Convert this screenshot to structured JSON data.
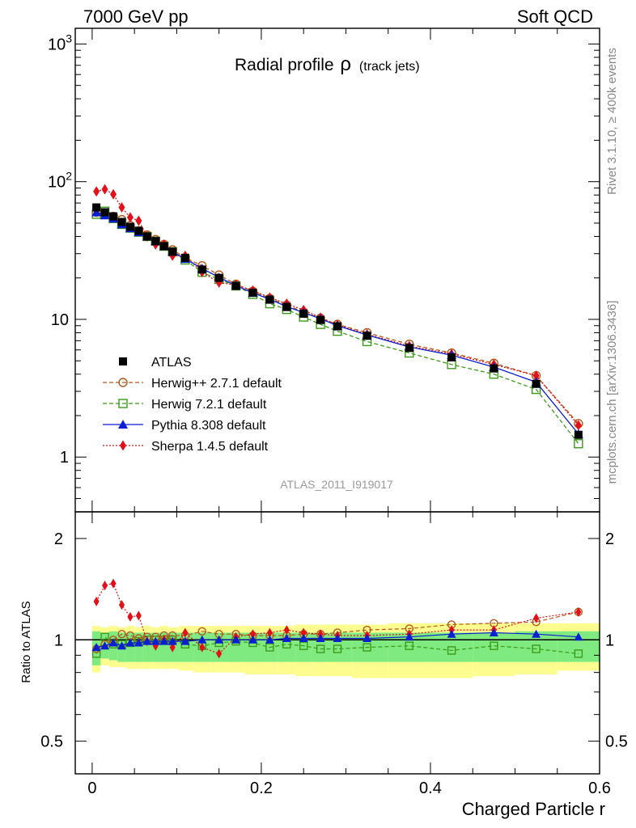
{
  "header": {
    "left": "7000 GeV pp",
    "right": "Soft QCD"
  },
  "side_labels": {
    "rivet": "Rivet 3.1.10, ≥ 400k events",
    "mcplots": "mcplots.cern.ch [arXiv:1306.3436]"
  },
  "watermark": "ATLAS_2011_I919017",
  "colors": {
    "atlas": "#000000",
    "herwigpp": "#b35a1e",
    "herwig7": "#3c9b1a",
    "pythia": "#0a1ed2",
    "sherpa": "#e3101a",
    "band_green": "#7fea7f",
    "band_yellow": "#fdfd8f"
  },
  "chart_data": [
    {
      "type": "line",
      "title": "Radial profile",
      "title_symbol": "ρ",
      "title_suffix": "(track jets)",
      "yscale": "log",
      "ylim": [
        0.4,
        1300
      ],
      "xlim": [
        -0.02,
        0.6
      ],
      "xticks": [
        0,
        0.2,
        0.4,
        0.6
      ],
      "xtick_labels": [
        "0",
        "0.2",
        "0.4",
        "0.6"
      ],
      "yticks": [
        1,
        10,
        100,
        1000
      ],
      "ytick_labels": [
        "1",
        "10",
        "10^2",
        "10^3"
      ],
      "xlabel": "Charged Particle r",
      "x": [
        0.005,
        0.015,
        0.025,
        0.035,
        0.045,
        0.055,
        0.065,
        0.075,
        0.085,
        0.095,
        0.11,
        0.13,
        0.15,
        0.17,
        0.19,
        0.21,
        0.23,
        0.25,
        0.27,
        0.29,
        0.325,
        0.375,
        0.425,
        0.475,
        0.525,
        0.575
      ],
      "legend": [
        {
          "label": "ATLAS",
          "series": "atlas"
        },
        {
          "label": "Herwig++ 2.7.1 default",
          "series": "herwigpp"
        },
        {
          "label": "Herwig 7.2.1 default",
          "series": "herwig7"
        },
        {
          "label": "Pythia 8.308 default",
          "series": "pythia"
        },
        {
          "label": "Sherpa 1.4.5 default",
          "series": "sherpa"
        }
      ],
      "series": [
        {
          "name": "ATLAS",
          "key": "atlas",
          "values": [
            65,
            60,
            56,
            51,
            47,
            44,
            40,
            37,
            34,
            31,
            28,
            23,
            20,
            17.5,
            15.6,
            13.9,
            12.3,
            11.0,
            9.9,
            8.9,
            7.6,
            6.2,
            5.3,
            4.4,
            3.4,
            1.45
          ]
        },
        {
          "name": "Herwig++ 2.7.1 default",
          "key": "herwigpp",
          "values": [
            60,
            58,
            56,
            53,
            48,
            44,
            41,
            38,
            35,
            32,
            28,
            24.5,
            21,
            18,
            16,
            14.2,
            12.7,
            11.3,
            10.2,
            9.2,
            8.0,
            6.6,
            5.7,
            4.8,
            3.9,
            1.75
          ]
        },
        {
          "name": "Herwig 7.2.1 default",
          "key": "herwig7",
          "values": [
            58,
            61,
            54,
            49,
            46,
            43,
            40,
            37,
            34,
            31,
            27,
            22,
            19.5,
            17.5,
            15.2,
            13.0,
            11.8,
            10.4,
            9.2,
            8.2,
            6.9,
            5.7,
            4.7,
            4.0,
            3.1,
            1.25
          ]
        },
        {
          "name": "Pythia 8.308 default",
          "key": "pythia",
          "values": [
            60,
            57,
            54,
            49,
            46,
            43,
            40,
            37,
            34,
            31,
            27.5,
            23.4,
            20.2,
            17.6,
            15.6,
            14.0,
            12.4,
            11.2,
            10.1,
            9.0,
            7.7,
            6.3,
            5.5,
            4.5,
            3.5,
            1.47
          ]
        },
        {
          "name": "Sherpa 1.4.5 default",
          "key": "sherpa",
          "values": [
            85,
            88,
            81,
            65,
            55,
            52,
            40,
            35,
            35,
            29,
            29,
            22,
            18.5,
            17.8,
            16.2,
            14.4,
            13.0,
            11.7,
            10.3,
            9.1,
            7.8,
            6.4,
            5.6,
            4.7,
            3.9,
            1.7
          ]
        }
      ]
    },
    {
      "type": "line",
      "ylabel": "Ratio to ATLAS",
      "yscale": "log",
      "ylim": [
        0.4,
        2.4
      ],
      "xlim": [
        -0.02,
        0.6
      ],
      "yticks": [
        0.5,
        1,
        2
      ],
      "ytick_labels": [
        "0.5",
        "1",
        "2"
      ],
      "bands": {
        "green": [
          [
            0.84,
            1.06
          ],
          [
            0.88,
            1.05
          ],
          [
            0.87,
            1.06
          ],
          [
            0.86,
            1.05
          ],
          [
            0.86,
            1.05
          ],
          [
            0.86,
            1.05
          ],
          [
            0.86,
            1.05
          ],
          [
            0.86,
            1.05
          ],
          [
            0.86,
            1.05
          ],
          [
            0.86,
            1.05
          ],
          [
            0.86,
            1.05
          ],
          [
            0.86,
            1.05
          ],
          [
            0.86,
            1.05
          ],
          [
            0.86,
            1.05
          ],
          [
            0.86,
            1.05
          ],
          [
            0.86,
            1.05
          ],
          [
            0.86,
            1.05
          ],
          [
            0.86,
            1.05
          ],
          [
            0.86,
            1.05
          ],
          [
            0.86,
            1.05
          ],
          [
            0.86,
            1.05
          ],
          [
            0.86,
            1.05
          ],
          [
            0.86,
            1.05
          ],
          [
            0.86,
            1.05
          ],
          [
            0.86,
            1.06
          ],
          [
            0.86,
            1.06
          ]
        ],
        "yellow": [
          [
            0.8,
            1.1
          ],
          [
            0.84,
            1.09
          ],
          [
            0.83,
            1.1
          ],
          [
            0.83,
            1.09
          ],
          [
            0.82,
            1.1
          ],
          [
            0.82,
            1.09
          ],
          [
            0.82,
            1.1
          ],
          [
            0.82,
            1.09
          ],
          [
            0.82,
            1.1
          ],
          [
            0.82,
            1.09
          ],
          [
            0.81,
            1.1
          ],
          [
            0.8,
            1.1
          ],
          [
            0.8,
            1.1
          ],
          [
            0.8,
            1.1
          ],
          [
            0.79,
            1.1
          ],
          [
            0.79,
            1.1
          ],
          [
            0.79,
            1.1
          ],
          [
            0.78,
            1.11
          ],
          [
            0.78,
            1.11
          ],
          [
            0.78,
            1.11
          ],
          [
            0.77,
            1.11
          ],
          [
            0.77,
            1.12
          ],
          [
            0.77,
            1.12
          ],
          [
            0.78,
            1.12
          ],
          [
            0.79,
            1.12
          ],
          [
            0.81,
            1.12
          ]
        ]
      },
      "series": [
        {
          "name": "Herwig++ 2.7.1 default",
          "key": "herwigpp",
          "values": [
            0.94,
            0.97,
            1.0,
            1.04,
            1.03,
            1.01,
            1.02,
            1.02,
            1.03,
            1.03,
            1.03,
            1.06,
            1.04,
            1.04,
            1.03,
            1.03,
            1.03,
            1.04,
            1.04,
            1.05,
            1.07,
            1.08,
            1.11,
            1.12,
            1.13,
            1.21
          ]
        },
        {
          "name": "Herwig 7.2.1 default",
          "key": "herwig7",
          "values": [
            0.91,
            1.02,
            0.97,
            0.97,
            0.98,
            0.99,
            1.0,
            1.0,
            1.0,
            1.0,
            0.97,
            0.96,
            0.98,
            0.99,
            0.98,
            0.95,
            0.97,
            0.96,
            0.94,
            0.94,
            0.95,
            0.96,
            0.93,
            0.96,
            0.94,
            0.91
          ]
        },
        {
          "name": "Pythia 8.308 default",
          "key": "pythia",
          "values": [
            0.95,
            0.96,
            0.98,
            0.96,
            0.98,
            0.98,
            0.99,
            0.99,
            0.99,
            0.99,
            0.99,
            1.0,
            1.0,
            1.0,
            1.0,
            1.0,
            1.01,
            1.01,
            1.01,
            1.01,
            1.01,
            1.02,
            1.04,
            1.05,
            1.04,
            1.02
          ]
        },
        {
          "name": "Sherpa 1.4.5 default",
          "key": "sherpa",
          "values": [
            1.3,
            1.45,
            1.47,
            1.27,
            1.17,
            1.18,
            0.99,
            0.96,
            1.0,
            0.95,
            1.05,
            0.95,
            0.91,
            1.02,
            1.04,
            1.05,
            1.07,
            1.05,
            1.04,
            1.03,
            1.03,
            1.04,
            1.07,
            1.07,
            1.16,
            1.21
          ]
        }
      ]
    }
  ]
}
